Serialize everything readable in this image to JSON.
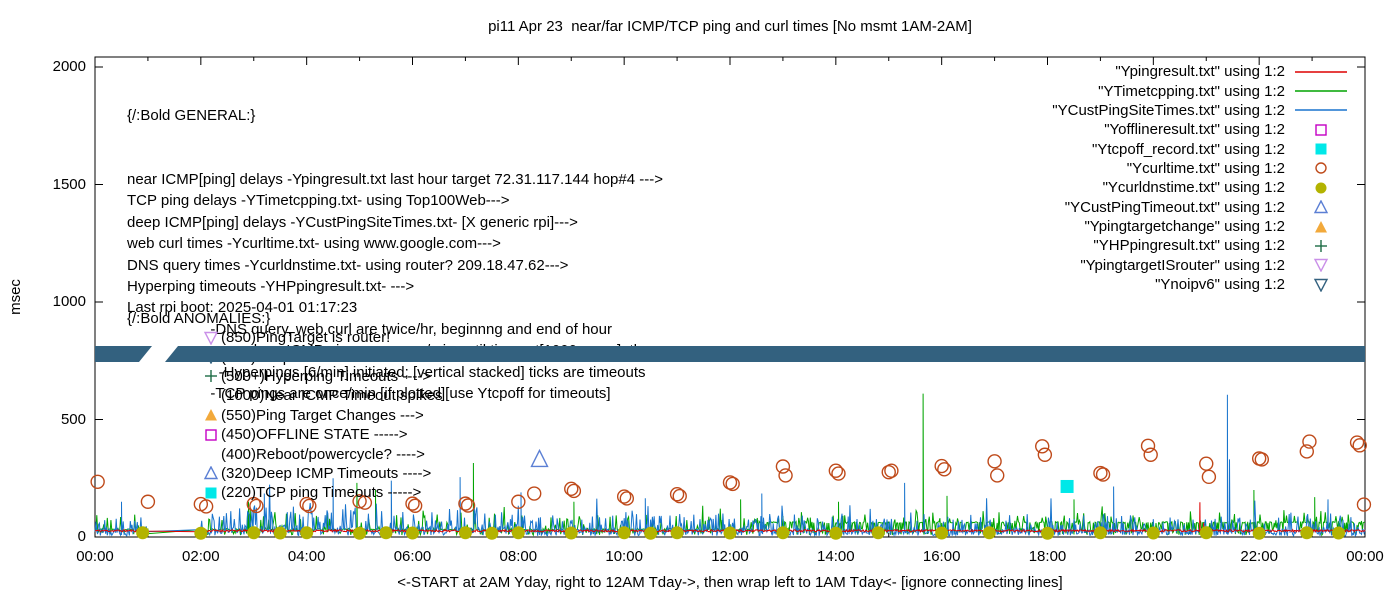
{
  "title": "pi11 Apr 23  near/far ICMP/TCP ping and curl times [No msmt 1AM-2AM]",
  "y_axis_label": "msec",
  "footer": "<-START at 2AM Yday, right to 12AM Tday->, then wrap left to 1AM Tday<- [ignore connecting lines]",
  "general": {
    "heading": "{/:Bold GENERAL:}",
    "lines": [
      "near ICMP[ping] delays -Ypingresult.txt last hour target 72.31.117.144 hop#4 --->",
      "TCP ping delays -YTimetcpping.txt- using Top100Web--->",
      "deep ICMP[ping] delays -YCustPingSiteTimes.txt- [X generic rpi]--->",
      "web curl times -Ycurltime.txt- using www.google.com--->",
      "DNS query times -Ycurldnstime.txt- using router? 209.18.47.62--->",
      "Hyperping timeouts -YHPpingresult.txt- --->",
      "Last rpi boot: 2025-04-01 01:17:23",
      "                    -DNS query, web curl are twice/hr, beginnng and end of hour",
      "                    -near,deep ICMP pings are once/min until timeout[1000 msec], then:",
      "                      -Hyperpings [6/min] initiated; [vertical stacked] ticks are timeouts",
      "                    -TCP pings are once/min [if plotted][use Ytcpoff for timeouts]"
    ]
  },
  "anomalies": {
    "heading": "{/:Bold ANOMALIES:}",
    "items": [
      {
        "marker": "triangle-down-open",
        "color": "#c98fe8",
        "text": "(850)PingTarget is router!"
      },
      {
        "marker": "triangle-down-open",
        "color": "#33617f",
        "text": "(785)No ipv6 fallback"
      },
      {
        "marker": "plus",
        "color": "#1d6b45",
        "text": "(500+)Hyperping Timeouts ---->"
      },
      {
        "marker": "none",
        "color": "",
        "text": "(1000)Near ICMP Timeout spikes"
      },
      {
        "marker": "triangle-up-filled",
        "color": "#f2a93b",
        "text": "(550)Ping Target Changes --->"
      },
      {
        "marker": "square-open",
        "color": "#c400c4",
        "text": "(450)OFFLINE STATE ----->"
      },
      {
        "marker": "none",
        "color": "",
        "text": "(400)Reboot/powercycle? ---->"
      },
      {
        "marker": "triangle-up-open",
        "color": "#5b7fd4",
        "text": "(320)Deep ICMP Timeouts ---->"
      },
      {
        "marker": "square-filled",
        "color": "#00e8e8",
        "text": "(220)TCP ping Timeouts ----->"
      }
    ]
  },
  "legend": {
    "items": [
      {
        "label": "\"Ypingresult.txt\" using 1:2",
        "marker": "line",
        "color": "#dd0000"
      },
      {
        "label": "\"YTimetcpping.txt\" using 1:2",
        "marker": "line",
        "color": "#00a400"
      },
      {
        "label": "\"YCustPingSiteTimes.txt\" using 1:2",
        "marker": "line",
        "color": "#1874cd"
      },
      {
        "label": "\"Yofflineresult.txt\" using 1:2",
        "marker": "square-open",
        "color": "#c400c4"
      },
      {
        "label": "\"Ytcpoff_record.txt\" using 1:2",
        "marker": "square-filled",
        "color": "#00e8e8"
      },
      {
        "label": "\"Ycurltime.txt\" using 1:2",
        "marker": "circle-open",
        "color": "#bf4a1a"
      },
      {
        "label": "\"Ycurldnstime.txt\" using 1:2",
        "marker": "circle-filled",
        "color": "#b3b300"
      },
      {
        "label": "\"YCustPingTimeout.txt\" using 1:2",
        "marker": "triangle-up-open",
        "color": "#5b7fd4"
      },
      {
        "label": "\"Ypingtargetchange\" using 1:2",
        "marker": "triangle-up-filled",
        "color": "#f2a93b"
      },
      {
        "label": "\"YHPpingresult.txt\" using 1:2",
        "marker": "plus",
        "color": "#1d6b45"
      },
      {
        "label": "\"YpingtargetISrouter\" using 1:2",
        "marker": "triangle-down-open",
        "color": "#c98fe8"
      },
      {
        "label": "\"Ynoipv6\" using 1:2",
        "marker": "triangle-down-open",
        "color": "#33617f"
      }
    ]
  },
  "chart_data": {
    "type": "line",
    "title": "pi11 Apr 23  near/far ICMP/TCP ping and curl times [No msmt 1AM-2AM]",
    "xlabel": "<-START at 2AM Yday, right to 12AM Tday->, then wrap left to 1AM Tday<- [ignore connecting lines]",
    "ylabel": "msec",
    "x_ticks": [
      "00:00",
      "02:00",
      "04:00",
      "06:00",
      "08:00",
      "10:00",
      "12:00",
      "14:00",
      "16:00",
      "18:00",
      "20:00",
      "22:00",
      "00:00"
    ],
    "y_ticks": [
      0,
      500,
      1000,
      1500,
      2000
    ],
    "x_range_hours": [
      0,
      24
    ],
    "ylim": [
      0,
      2043
    ],
    "grid": false,
    "legend_position": "top-right-inside",
    "no_measurement_window_hours": [
      1,
      2
    ],
    "series": [
      {
        "name": "Ypingresult.txt",
        "desc": "near ICMP ping delay",
        "type": "noisy-line",
        "kind": "red",
        "color": "#dd0000",
        "seed": 11,
        "base": 22,
        "amp": 0,
        "spikes": [
          [
            20.88,
            148
          ],
          [
            20.95,
            60
          ]
        ]
      },
      {
        "name": "YTimetcpping.txt",
        "desc": "TCP ping delay",
        "type": "noisy-line",
        "kind": "green",
        "color": "#00a400",
        "seed": 23,
        "base": 32,
        "base2": 62,
        "amp": 80,
        "spikes": [
          [
            2.9,
            150
          ],
          [
            4.95,
            230
          ],
          [
            5.3,
            200
          ],
          [
            7.15,
            315
          ],
          [
            9.05,
            150
          ],
          [
            12.2,
            160
          ],
          [
            14.05,
            150
          ],
          [
            15.65,
            610
          ],
          [
            16.1,
            175
          ],
          [
            18.5,
            160
          ],
          [
            21.9,
            200
          ],
          [
            23.05,
            170
          ]
        ]
      },
      {
        "name": "YCustPingSiteTimes.txt",
        "desc": "deep ICMP ping delay",
        "type": "noisy-line",
        "kind": "blue",
        "color": "#1874cd",
        "seed": 42,
        "base": 35,
        "amp": 75,
        "spikes": [
          [
            0.5,
            150
          ],
          [
            3.2,
            185
          ],
          [
            4.5,
            250
          ],
          [
            5.6,
            240
          ],
          [
            6.9,
            255
          ],
          [
            8.05,
            190
          ],
          [
            10.4,
            165
          ],
          [
            12.6,
            185
          ],
          [
            15.3,
            230
          ],
          [
            19.25,
            215
          ],
          [
            21.4,
            605
          ],
          [
            21.44,
            330
          ],
          [
            23.3,
            160
          ]
        ]
      },
      {
        "name": "Ycurltime.txt",
        "desc": "web curl time",
        "type": "scatter",
        "marker": "circle-open",
        "color": "#bf4a1a",
        "points": [
          [
            0.05,
            235
          ],
          [
            1.0,
            150
          ],
          [
            2.0,
            140
          ],
          [
            2.1,
            130
          ],
          [
            3.0,
            140
          ],
          [
            3.05,
            132
          ],
          [
            4.0,
            140
          ],
          [
            4.05,
            132
          ],
          [
            5.0,
            152
          ],
          [
            5.1,
            146
          ],
          [
            6.0,
            142
          ],
          [
            6.05,
            133
          ],
          [
            7.0,
            142
          ],
          [
            7.05,
            134
          ],
          [
            8.0,
            150
          ],
          [
            8.3,
            185
          ],
          [
            9.0,
            205
          ],
          [
            9.05,
            196
          ],
          [
            10.0,
            172
          ],
          [
            10.05,
            164
          ],
          [
            11.0,
            182
          ],
          [
            11.05,
            174
          ],
          [
            12.0,
            232
          ],
          [
            12.05,
            226
          ],
          [
            13.0,
            300
          ],
          [
            13.05,
            262
          ],
          [
            14.0,
            282
          ],
          [
            14.05,
            270
          ],
          [
            15.0,
            276
          ],
          [
            15.05,
            282
          ],
          [
            16.0,
            302
          ],
          [
            16.05,
            288
          ],
          [
            17.0,
            322
          ],
          [
            17.05,
            262
          ],
          [
            17.9,
            386
          ],
          [
            17.95,
            350
          ],
          [
            19.0,
            272
          ],
          [
            19.05,
            266
          ],
          [
            19.9,
            388
          ],
          [
            19.95,
            350
          ],
          [
            21.0,
            312
          ],
          [
            21.05,
            256
          ],
          [
            22.0,
            334
          ],
          [
            22.05,
            330
          ],
          [
            22.9,
            364
          ],
          [
            22.95,
            406
          ],
          [
            23.85,
            402
          ],
          [
            23.9,
            390
          ],
          [
            23.98,
            138
          ]
        ]
      },
      {
        "name": "Ycurldnstime.txt",
        "desc": "DNS query time",
        "type": "scatter",
        "marker": "circle-filled",
        "color": "#b3b300",
        "points": [
          [
            0.9,
            18
          ],
          [
            2.0,
            16
          ],
          [
            3.0,
            18
          ],
          [
            3.5,
            17
          ],
          [
            4.0,
            18
          ],
          [
            5.0,
            16
          ],
          [
            5.5,
            18
          ],
          [
            6.0,
            17
          ],
          [
            7.0,
            18
          ],
          [
            7.5,
            16
          ],
          [
            8.0,
            18
          ],
          [
            9.0,
            17
          ],
          [
            10.0,
            18
          ],
          [
            10.5,
            16
          ],
          [
            11.0,
            18
          ],
          [
            12.0,
            17
          ],
          [
            13.0,
            18
          ],
          [
            14.0,
            16
          ],
          [
            14.8,
            18
          ],
          [
            16.0,
            17
          ],
          [
            16.9,
            18
          ],
          [
            18.0,
            16
          ],
          [
            19.0,
            18
          ],
          [
            20.0,
            17
          ],
          [
            21.0,
            18
          ],
          [
            22.0,
            16
          ],
          [
            22.9,
            18
          ],
          [
            23.5,
            17
          ]
        ]
      },
      {
        "name": "YCustPingTimeout.txt",
        "desc": "deep ICMP timeout",
        "type": "scatter",
        "marker": "triangle-up-open",
        "color": "#5b7fd4",
        "points": [
          [
            8.4,
            330
          ]
        ]
      },
      {
        "name": "Ytcpoff_record.txt",
        "desc": "TCP ping timeout",
        "type": "scatter",
        "marker": "square-filled",
        "color": "#00e8e8",
        "points": [
          [
            18.37,
            215
          ]
        ]
      },
      {
        "name": "Ynoipv6",
        "desc": "no ipv6 fallback marker band",
        "type": "band",
        "color": "#33617f",
        "value_msec": 785,
        "band_msec_range": [
          745,
          817
        ],
        "gap_hours": [
          1.08,
          1.57
        ]
      }
    ]
  }
}
